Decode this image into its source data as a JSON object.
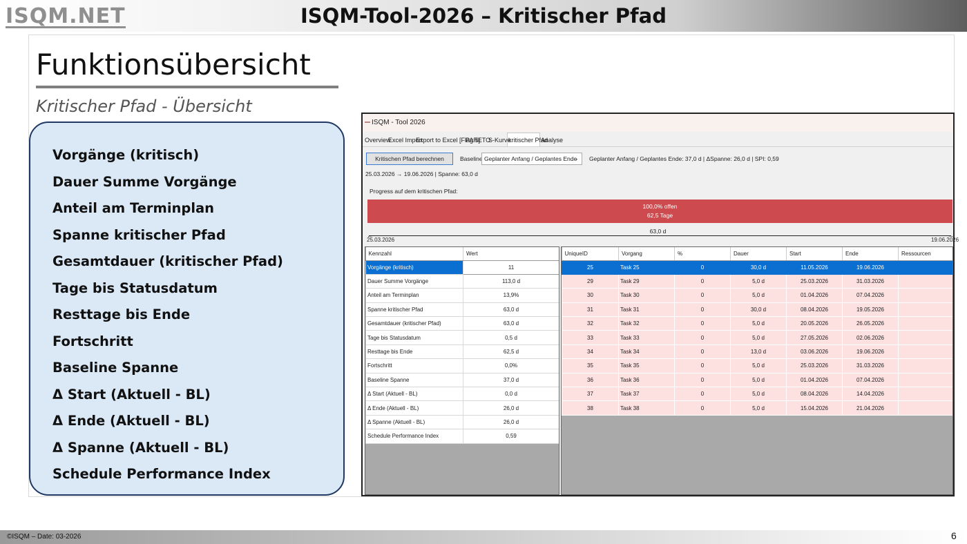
{
  "header": {
    "logo_text": "ISQM.NET",
    "title": "ISQM-Tool-2026 – Kritischer Pfad"
  },
  "content": {
    "heading": "Funktionsübersicht",
    "subheading": "Kritischer Pfad - Übersicht",
    "features": [
      "Vorgänge (kritisch)",
      "Dauer Summe Vorgänge",
      "Anteil am Terminplan",
      "Spanne kritischer Pfad",
      "Gesamtdauer (kritischer Pfad)",
      "Tage bis Statusdatum",
      "Resttage bis Ende",
      "Fortschritt",
      "Baseline Spanne",
      "Δ Start (Aktuell - BL)",
      "Δ Ende  (Aktuell - BL)",
      "Δ Spanne (Aktuell - BL)",
      "Schedule Performance Index"
    ]
  },
  "app": {
    "window_title": "ISQM - Tool 2026",
    "tabs": [
      "Overview",
      "Excel Import",
      "Export to Excel [Flag 5]",
      "PARETO",
      "S-Kurve",
      "kritischer Pfad",
      "Analyse"
    ],
    "active_tab": "kritischer Pfad",
    "calc_button": "Kritischen Pfad berechnen",
    "baseline_label": "Baseline:",
    "baseline_value": "Geplanter Anfang / Geplantes Ende",
    "baseline_info": "Geplanter Anfang / Geplantes Ende: 37,0 d | ΔSpanne: 26,0 d | SPI: 0,59",
    "range_info": "25.03.2026 → 19.06.2026  |  Spanne: 63,0 d",
    "progress_caption": "Progress auf dem kritischen Pfad:",
    "progress": {
      "percent_open": 100,
      "line1": "100,0% offen",
      "line2": "62,5 Tage"
    },
    "span_label": "63,0 d",
    "axis_start": "25.03.2026",
    "axis_end": "19.06.2026",
    "kpi_columns": [
      "Kennzahl",
      "Wert"
    ],
    "kpi_rows": [
      [
        "Vorgänge (kritisch)",
        "11"
      ],
      [
        "Dauer Summe Vorgänge",
        "113,0 d"
      ],
      [
        "Anteil am Terminplan",
        "13,9%"
      ],
      [
        "Spanne kritischer Pfad",
        "63,0 d"
      ],
      [
        "Gesamtdauer (kritischer Pfad)",
        "63,0 d"
      ],
      [
        "Tage bis Statusdatum",
        "0,5 d"
      ],
      [
        "Resttage bis Ende",
        "62,5 d"
      ],
      [
        "Fortschritt",
        "0,0%"
      ],
      [
        "Baseline Spanne",
        "37,0 d"
      ],
      [
        "Δ Start (Aktuell - BL)",
        "0,0 d"
      ],
      [
        "Δ Ende  (Aktuell - BL)",
        "26,0 d"
      ],
      [
        "Δ Spanne (Aktuell - BL)",
        "26,0 d"
      ],
      [
        "Schedule Performance Index",
        "0,59"
      ]
    ],
    "task_columns": [
      "UniqueID",
      "Vorgang",
      "%",
      "Dauer",
      "Start",
      "Ende",
      "Ressourcen"
    ],
    "task_rows": [
      [
        "25",
        "Task 25",
        "0",
        "30,0 d",
        "11.05.2026",
        "19.06.2026",
        ""
      ],
      [
        "29",
        "Task 29",
        "0",
        "5,0 d",
        "25.03.2026",
        "31.03.2026",
        ""
      ],
      [
        "30",
        "Task 30",
        "0",
        "5,0 d",
        "01.04.2026",
        "07.04.2026",
        ""
      ],
      [
        "31",
        "Task 31",
        "0",
        "30,0 d",
        "08.04.2026",
        "19.05.2026",
        ""
      ],
      [
        "32",
        "Task 32",
        "0",
        "5,0 d",
        "20.05.2026",
        "26.05.2026",
        ""
      ],
      [
        "33",
        "Task 33",
        "0",
        "5,0 d",
        "27.05.2026",
        "02.06.2026",
        ""
      ],
      [
        "34",
        "Task 34",
        "0",
        "13,0 d",
        "03.06.2026",
        "19.06.2026",
        ""
      ],
      [
        "35",
        "Task 35",
        "0",
        "5,0 d",
        "25.03.2026",
        "31.03.2026",
        ""
      ],
      [
        "36",
        "Task 36",
        "0",
        "5,0 d",
        "01.04.2026",
        "07.04.2026",
        ""
      ],
      [
        "37",
        "Task 37",
        "0",
        "5,0 d",
        "08.04.2026",
        "14.04.2026",
        ""
      ],
      [
        "38",
        "Task 38",
        "0",
        "5,0 d",
        "15.04.2026",
        "21.04.2026",
        ""
      ]
    ],
    "colors": {
      "progress_red": "#cd4b4f",
      "selection_blue": "#0a6fd1",
      "row_pink": "#fde0e0"
    }
  },
  "footer": {
    "text": "©ISQM – Date: 03-2026",
    "page": "6"
  }
}
